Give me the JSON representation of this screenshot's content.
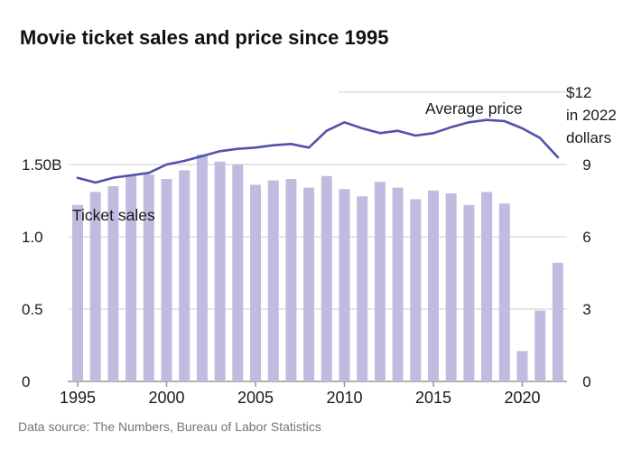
{
  "title": "Movie ticket sales and price since 1995",
  "footer": "Data source: The Numbers, Bureau of Labor Statistics",
  "colors": {
    "bar": "#c0bcdf",
    "line": "#5153a8",
    "gridline": "#cdcdcd",
    "axis_line": "#969696",
    "text": "#1a1a1a",
    "muted_text": "#757575"
  },
  "chart_data": {
    "type": "combo",
    "title": "Movie ticket sales and price since 1995",
    "x": [
      1995,
      1996,
      1997,
      1998,
      1999,
      2000,
      2001,
      2002,
      2003,
      2004,
      2005,
      2006,
      2007,
      2008,
      2009,
      2010,
      2011,
      2012,
      2013,
      2014,
      2015,
      2016,
      2017,
      2018,
      2019,
      2020,
      2021,
      2022
    ],
    "series": [
      {
        "name": "Ticket sales",
        "type": "bar",
        "axis": "left",
        "values": [
          1.22,
          1.31,
          1.35,
          1.43,
          1.43,
          1.4,
          1.46,
          1.57,
          1.52,
          1.5,
          1.36,
          1.39,
          1.4,
          1.34,
          1.42,
          1.33,
          1.28,
          1.38,
          1.34,
          1.26,
          1.32,
          1.3,
          1.22,
          1.31,
          1.23,
          0.21,
          0.49,
          0.82
        ]
      },
      {
        "name": "Average price",
        "type": "line",
        "axis": "right",
        "values": [
          8.45,
          8.25,
          8.45,
          8.55,
          8.65,
          9.0,
          9.15,
          9.35,
          9.55,
          9.65,
          9.7,
          9.8,
          9.85,
          9.7,
          10.4,
          10.75,
          10.5,
          10.3,
          10.4,
          10.2,
          10.3,
          10.55,
          10.75,
          10.85,
          10.8,
          10.5,
          10.1,
          9.3
        ]
      }
    ],
    "left_axis": {
      "range": [
        0,
        1.5
      ],
      "unit_suffix": "B",
      "ticks": [
        {
          "value": 1.5,
          "label": "1.50B"
        },
        {
          "value": 1.0,
          "label": "1.0"
        },
        {
          "value": 0.5,
          "label": "0.5"
        },
        {
          "value": 0,
          "label": "0"
        }
      ]
    },
    "right_axis": {
      "range": [
        0,
        12
      ],
      "unit_lines": [
        "in 2022",
        "dollars"
      ],
      "ticks": [
        {
          "value": 12,
          "label": "$12"
        },
        {
          "value": 9,
          "label": "9"
        },
        {
          "value": 6,
          "label": "6"
        },
        {
          "value": 3,
          "label": "3"
        },
        {
          "value": 0,
          "label": "0"
        }
      ]
    },
    "x_ticks": [
      1995,
      2000,
      2005,
      2010,
      2015,
      2020
    ],
    "grid": true,
    "legend_position": "inline-annotations"
  }
}
